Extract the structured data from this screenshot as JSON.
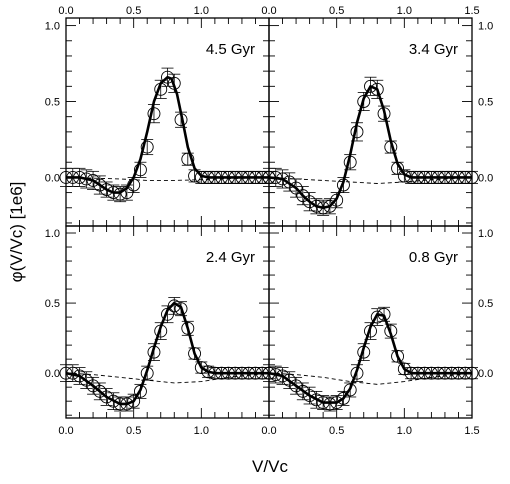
{
  "chart_data": {
    "type": "line",
    "xlabel": "V/Vc",
    "ylabel": "φ(V/Vc) [1e6]",
    "x_tick_labels": [
      "0.0",
      "0.5",
      "1.0",
      "1.5"
    ],
    "x_ticks": [
      0.0,
      0.5,
      1.0,
      1.5
    ],
    "y_tick_labels": [
      "0.0",
      "0.5",
      "1.0"
    ],
    "y_ticks": [
      0.0,
      0.5,
      1.0
    ],
    "xlim": [
      0,
      1.5
    ],
    "ylim": [
      -0.32,
      1.05
    ],
    "grid": false,
    "panels": [
      {
        "label": "4.5 Gyr",
        "points_x": [
          0.0,
          0.05,
          0.1,
          0.15,
          0.2,
          0.25,
          0.3,
          0.35,
          0.4,
          0.45,
          0.5,
          0.55,
          0.6,
          0.65,
          0.7,
          0.75,
          0.8,
          0.85,
          0.9,
          0.95,
          1.0,
          1.05,
          1.1,
          1.15,
          1.2,
          1.25,
          1.3,
          1.35,
          1.4,
          1.45,
          1.5
        ],
        "points_y": [
          0.0,
          0.0,
          0.0,
          -0.01,
          -0.02,
          -0.05,
          -0.08,
          -0.1,
          -0.11,
          -0.1,
          -0.05,
          0.05,
          0.2,
          0.42,
          0.58,
          0.66,
          0.62,
          0.38,
          0.12,
          0.01,
          0.0,
          0.0,
          0.0,
          0.0,
          0.0,
          0.0,
          0.0,
          0.0,
          0.0,
          0.0,
          0.0
        ],
        "errors": [
          0.06,
          0.06,
          0.06,
          0.06,
          0.06,
          0.06,
          0.05,
          0.05,
          0.05,
          0.05,
          0.05,
          0.05,
          0.05,
          0.06,
          0.06,
          0.06,
          0.06,
          0.05,
          0.04,
          0.04,
          0.04,
          0.04,
          0.04,
          0.04,
          0.04,
          0.04,
          0.04,
          0.04,
          0.04,
          0.04,
          0.04
        ],
        "fit_x": [
          0.0,
          0.1,
          0.2,
          0.25,
          0.3,
          0.35,
          0.4,
          0.45,
          0.5,
          0.55,
          0.6,
          0.65,
          0.7,
          0.75,
          0.78,
          0.82,
          0.86,
          0.9,
          0.95,
          1.0,
          1.05,
          1.1,
          1.2,
          1.3,
          1.5
        ],
        "fit_y": [
          0.0,
          0.0,
          -0.02,
          -0.05,
          -0.08,
          -0.1,
          -0.1,
          -0.07,
          0.0,
          0.12,
          0.3,
          0.5,
          0.62,
          0.66,
          0.65,
          0.55,
          0.38,
          0.2,
          0.06,
          0.01,
          0.0,
          0.0,
          0.0,
          0.0,
          0.0
        ],
        "dashed_x": [
          0.0,
          0.2,
          0.4,
          0.6,
          0.8,
          1.0,
          1.2,
          1.4,
          1.5
        ],
        "dashed_y": [
          0.0,
          -0.005,
          -0.01,
          -0.02,
          -0.02,
          -0.015,
          -0.008,
          -0.003,
          0.0
        ]
      },
      {
        "label": "3.4 Gyr",
        "points_x": [
          0.0,
          0.05,
          0.1,
          0.15,
          0.2,
          0.25,
          0.3,
          0.35,
          0.4,
          0.45,
          0.5,
          0.55,
          0.6,
          0.65,
          0.7,
          0.75,
          0.8,
          0.85,
          0.9,
          0.95,
          1.0,
          1.05,
          1.1,
          1.15,
          1.2,
          1.25,
          1.3,
          1.35,
          1.4,
          1.45,
          1.5
        ],
        "points_y": [
          0.0,
          0.0,
          -0.01,
          -0.03,
          -0.07,
          -0.12,
          -0.16,
          -0.19,
          -0.2,
          -0.19,
          -0.15,
          -0.05,
          0.1,
          0.3,
          0.5,
          0.6,
          0.58,
          0.42,
          0.2,
          0.06,
          0.01,
          0.0,
          0.0,
          0.0,
          0.0,
          0.0,
          0.0,
          0.0,
          0.0,
          0.0,
          0.0
        ],
        "errors": [
          0.06,
          0.06,
          0.06,
          0.06,
          0.06,
          0.06,
          0.06,
          0.05,
          0.05,
          0.05,
          0.05,
          0.05,
          0.05,
          0.06,
          0.06,
          0.06,
          0.06,
          0.05,
          0.04,
          0.04,
          0.04,
          0.04,
          0.04,
          0.04,
          0.04,
          0.04,
          0.04,
          0.04,
          0.04,
          0.04,
          0.04
        ],
        "fit_x": [
          0.0,
          0.1,
          0.2,
          0.25,
          0.3,
          0.35,
          0.4,
          0.45,
          0.5,
          0.55,
          0.6,
          0.65,
          0.7,
          0.75,
          0.8,
          0.85,
          0.9,
          0.95,
          1.0,
          1.05,
          1.1,
          1.2,
          1.3,
          1.5
        ],
        "fit_y": [
          0.0,
          -0.01,
          -0.07,
          -0.12,
          -0.16,
          -0.19,
          -0.2,
          -0.19,
          -0.14,
          -0.03,
          0.15,
          0.36,
          0.52,
          0.6,
          0.58,
          0.44,
          0.24,
          0.09,
          0.02,
          0.0,
          0.0,
          0.0,
          0.0,
          0.0
        ],
        "dashed_x": [
          0.0,
          0.2,
          0.4,
          0.6,
          0.8,
          1.0,
          1.2,
          1.4,
          1.5
        ],
        "dashed_y": [
          0.0,
          -0.01,
          -0.02,
          -0.03,
          -0.04,
          -0.03,
          -0.015,
          -0.005,
          0.0
        ]
      },
      {
        "label": "2.4 Gyr",
        "points_x": [
          0.0,
          0.05,
          0.1,
          0.15,
          0.2,
          0.25,
          0.3,
          0.35,
          0.4,
          0.45,
          0.5,
          0.55,
          0.6,
          0.65,
          0.7,
          0.75,
          0.8,
          0.85,
          0.9,
          0.95,
          1.0,
          1.05,
          1.1,
          1.15,
          1.2,
          1.25,
          1.3,
          1.35,
          1.4,
          1.45,
          1.5
        ],
        "points_y": [
          0.0,
          0.0,
          -0.02,
          -0.05,
          -0.09,
          -0.13,
          -0.17,
          -0.2,
          -0.22,
          -0.22,
          -0.2,
          -0.13,
          0.0,
          0.15,
          0.3,
          0.42,
          0.48,
          0.46,
          0.32,
          0.14,
          0.04,
          0.01,
          0.0,
          0.0,
          0.0,
          0.0,
          0.0,
          0.0,
          0.0,
          0.0,
          0.0
        ],
        "errors": [
          0.06,
          0.06,
          0.06,
          0.06,
          0.06,
          0.06,
          0.06,
          0.06,
          0.05,
          0.05,
          0.05,
          0.05,
          0.05,
          0.06,
          0.06,
          0.06,
          0.06,
          0.05,
          0.05,
          0.04,
          0.04,
          0.04,
          0.04,
          0.04,
          0.04,
          0.04,
          0.04,
          0.04,
          0.04,
          0.04,
          0.04
        ],
        "fit_x": [
          0.0,
          0.1,
          0.2,
          0.3,
          0.4,
          0.45,
          0.5,
          0.55,
          0.6,
          0.65,
          0.7,
          0.75,
          0.8,
          0.85,
          0.9,
          0.95,
          1.0,
          1.05,
          1.1,
          1.2,
          1.3,
          1.5
        ],
        "fit_y": [
          0.0,
          -0.02,
          -0.09,
          -0.17,
          -0.22,
          -0.22,
          -0.2,
          -0.12,
          0.02,
          0.18,
          0.33,
          0.45,
          0.5,
          0.47,
          0.32,
          0.14,
          0.04,
          0.01,
          0.0,
          0.0,
          0.0,
          0.0
        ],
        "dashed_x": [
          0.0,
          0.2,
          0.4,
          0.6,
          0.8,
          1.0,
          1.2,
          1.4,
          1.5
        ],
        "dashed_y": [
          0.0,
          -0.01,
          -0.03,
          -0.05,
          -0.07,
          -0.06,
          -0.03,
          -0.01,
          0.0
        ]
      },
      {
        "label": "0.8 Gyr",
        "points_x": [
          0.0,
          0.05,
          0.1,
          0.15,
          0.2,
          0.25,
          0.3,
          0.35,
          0.4,
          0.45,
          0.5,
          0.55,
          0.6,
          0.65,
          0.7,
          0.75,
          0.8,
          0.85,
          0.9,
          0.95,
          1.0,
          1.05,
          1.1,
          1.15,
          1.2,
          1.25,
          1.3,
          1.35,
          1.4,
          1.45,
          1.5
        ],
        "points_y": [
          0.0,
          -0.01,
          -0.02,
          -0.05,
          -0.09,
          -0.13,
          -0.16,
          -0.19,
          -0.21,
          -0.22,
          -0.21,
          -0.18,
          -0.12,
          0.0,
          0.15,
          0.3,
          0.4,
          0.42,
          0.3,
          0.12,
          0.03,
          0.0,
          0.0,
          0.0,
          0.0,
          0.0,
          0.0,
          0.0,
          0.0,
          0.0,
          0.0
        ],
        "errors": [
          0.06,
          0.06,
          0.06,
          0.06,
          0.06,
          0.06,
          0.06,
          0.06,
          0.05,
          0.05,
          0.05,
          0.05,
          0.05,
          0.06,
          0.06,
          0.06,
          0.06,
          0.05,
          0.05,
          0.04,
          0.04,
          0.04,
          0.04,
          0.04,
          0.04,
          0.04,
          0.04,
          0.04,
          0.04,
          0.04,
          0.04
        ],
        "fit_x": [
          0.0,
          0.1,
          0.2,
          0.3,
          0.4,
          0.5,
          0.55,
          0.6,
          0.65,
          0.7,
          0.75,
          0.8,
          0.85,
          0.9,
          0.95,
          1.0,
          1.05,
          1.1,
          1.2,
          1.3,
          1.5
        ],
        "fit_y": [
          0.0,
          -0.02,
          -0.09,
          -0.16,
          -0.21,
          -0.21,
          -0.18,
          -0.11,
          0.02,
          0.18,
          0.33,
          0.42,
          0.41,
          0.28,
          0.12,
          0.03,
          0.0,
          0.0,
          0.0,
          0.0,
          0.0
        ],
        "dashed_x": [
          0.0,
          0.2,
          0.4,
          0.6,
          0.8,
          1.0,
          1.2,
          1.4,
          1.5
        ],
        "dashed_y": [
          0.0,
          -0.01,
          -0.03,
          -0.06,
          -0.08,
          -0.06,
          -0.03,
          -0.01,
          0.0
        ]
      }
    ]
  }
}
